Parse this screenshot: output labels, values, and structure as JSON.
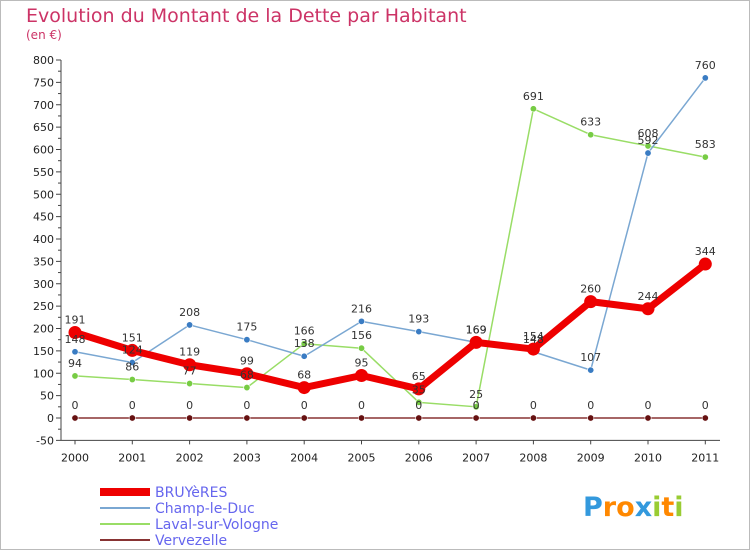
{
  "chart_data": {
    "type": "line",
    "title": "Evolution du Montant de la Dette par Habitant",
    "subtitle": "(en €)",
    "x": [
      "2000",
      "2001",
      "2002",
      "2003",
      "2004",
      "2005",
      "2006",
      "2007",
      "2008",
      "2009",
      "2010",
      "2011"
    ],
    "y_ticks": [
      "-50",
      "0",
      "50",
      "100",
      "150",
      "200",
      "250",
      "300",
      "350",
      "400",
      "450",
      "500",
      "550",
      "600",
      "650",
      "700",
      "750",
      "800"
    ],
    "ylim": [
      -50,
      800
    ],
    "grid": false,
    "legend_position": "bottom-left",
    "series": [
      {
        "name": "BRUYèRES",
        "color": "#ee0000",
        "values": [
          191,
          151,
          119,
          99,
          68,
          95,
          65,
          169,
          154,
          260,
          244,
          344
        ],
        "labels": [
          "191",
          "151",
          "119",
          "99",
          "68",
          "95",
          "65",
          "169",
          "154",
          "260",
          "244",
          "344"
        ]
      },
      {
        "name": "Champ-le-Duc",
        "color": "#7aa7d2",
        "marker_color": "#3a7cc3",
        "values": [
          148,
          124,
          208,
          175,
          138,
          216,
          193,
          169,
          148,
          107,
          592,
          760
        ],
        "labels": [
          "148",
          "124",
          "208",
          "175",
          "138",
          "216",
          "193",
          "169",
          "148",
          "107",
          "592",
          "760"
        ]
      },
      {
        "name": "Laval-sur-Vologne",
        "color": "#99dd66",
        "marker_color": "#77cc44",
        "values": [
          94,
          86,
          77,
          68,
          166,
          156,
          35,
          25,
          691,
          633,
          608,
          583
        ],
        "labels": [
          "94",
          "86",
          "77",
          "68",
          "166",
          "156",
          "35",
          "25",
          "691",
          "633",
          "608",
          "583"
        ]
      },
      {
        "name": "Vervezelle",
        "color": "#883333",
        "marker_color": "#661111",
        "values": [
          0,
          0,
          0,
          0,
          0,
          0,
          0,
          0,
          0,
          0,
          0,
          0
        ],
        "labels": [
          "0",
          "0",
          "0",
          "0",
          "0",
          "0",
          "0",
          "0",
          "0",
          "0",
          "0",
          "0"
        ]
      }
    ]
  },
  "colors": {
    "title": "#cc3366",
    "legend_text": "#6666ee",
    "axis": "#444444",
    "background": "#ffffff",
    "frame": "#bbbbbb"
  },
  "logo": {
    "text": "Proxiti",
    "letters": [
      "P",
      "r",
      "o",
      "x",
      "i",
      "t",
      "i"
    ],
    "letter_colors": [
      "#3399dd",
      "#ff8800",
      "#ff8800",
      "#3399dd",
      "#99cc33",
      "#ff8800",
      "#99cc33"
    ]
  }
}
